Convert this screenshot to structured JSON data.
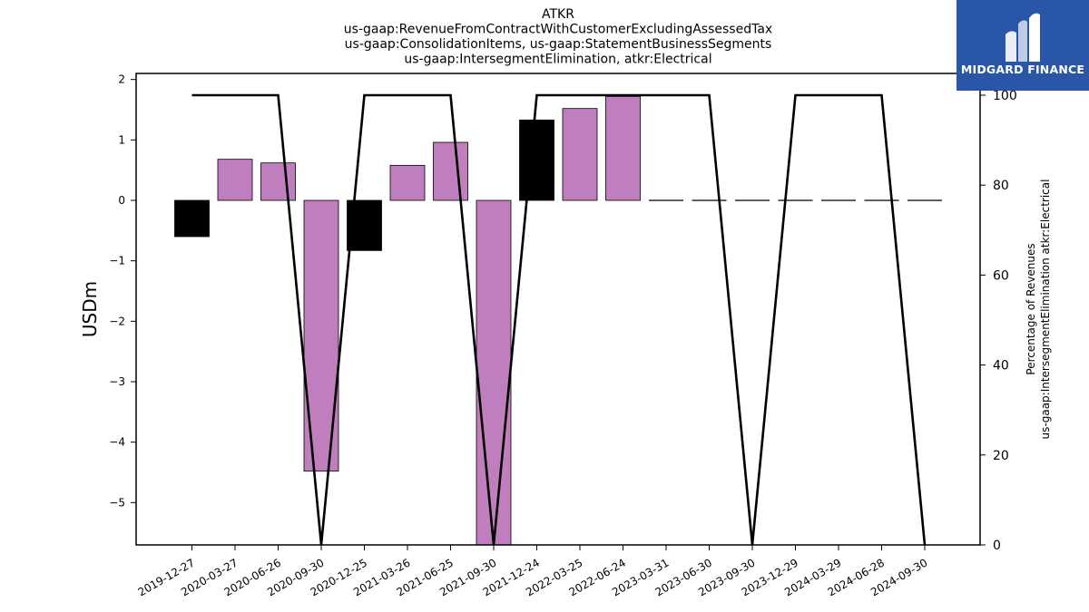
{
  "chart_data": {
    "type": "bar",
    "title_lines": [
      "ATKR",
      "us-gaap:RevenueFromContractWithCustomerExcludingAssessedTax",
      "us-gaap:ConsolidationItems, us-gaap:StatementBusinessSegments",
      "us-gaap:IntersegmentElimination, atkr:Electrical"
    ],
    "ylabel": "USDm",
    "y2label_lines": [
      "Percentage of Revenues",
      "us-gaap:IntersegmentElimination atkr:Electrical"
    ],
    "categories": [
      "2019-12-27",
      "2020-03-27",
      "2020-06-26",
      "2020-09-30",
      "2020-12-25",
      "2021-03-26",
      "2021-06-25",
      "2021-09-30",
      "2021-12-24",
      "2022-03-25",
      "2022-06-24",
      "2023-03-31",
      "2023-06-30",
      "2023-09-30",
      "2023-12-29",
      "2024-03-29",
      "2024-06-28",
      "2024-09-30"
    ],
    "values": [
      -0.6,
      0.68,
      0.62,
      -4.48,
      -0.83,
      0.58,
      0.96,
      -6.0,
      1.33,
      1.52,
      1.72,
      0.0,
      0.0,
      0.0,
      0.0,
      0.0,
      0.0,
      0.0
    ],
    "bar_colors": [
      "#000000",
      "#bf7fbf",
      "#bf7fbf",
      "#bf7fbf",
      "#000000",
      "#bf7fbf",
      "#bf7fbf",
      "#bf7fbf",
      "#000000",
      "#bf7fbf",
      "#bf7fbf",
      "#000000",
      "#000000",
      "#000000",
      "#000000",
      "#000000",
      "#000000",
      "#000000"
    ],
    "line_values": [
      100,
      100,
      100,
      0,
      100,
      100,
      100,
      0,
      100,
      100,
      100,
      100,
      100,
      0,
      100,
      100,
      100,
      0
    ],
    "ylim": [
      -5.7,
      2.1
    ],
    "yticks": [
      -5,
      -4,
      -3,
      -2,
      -1,
      0,
      1,
      2
    ],
    "ytick_labels": [
      "−5",
      "−4",
      "−3",
      "−2",
      "−1",
      "0",
      "1",
      "2"
    ],
    "y2lim": [
      0,
      100
    ],
    "y2ticks": [
      0,
      20,
      40,
      60,
      80,
      100
    ],
    "y2tick_labels": [
      "0",
      "20",
      "40",
      "60",
      "80",
      "100"
    ],
    "colors": {
      "purple": "#bf7fbf",
      "black": "#000000"
    }
  },
  "logo": {
    "text": "MIDGARD FINANCE",
    "bg": "#2a56a8"
  }
}
